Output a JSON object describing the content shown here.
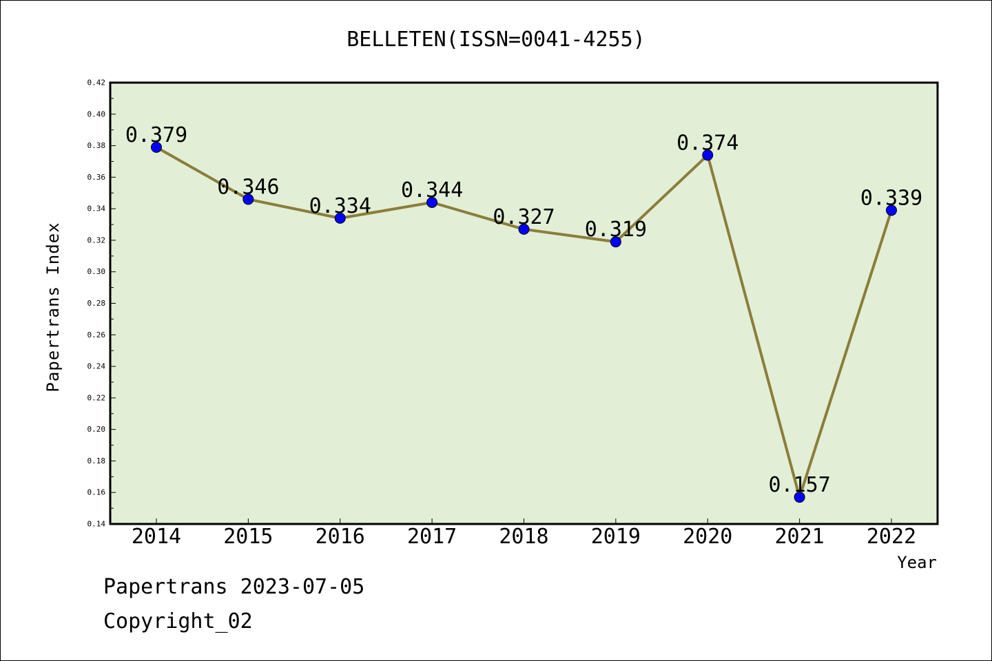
{
  "chart_data": {
    "type": "line",
    "title": "BELLETEN(ISSN=0041-4255)",
    "xlabel": "Year",
    "ylabel": "Papertrans Index",
    "categories": [
      "2014",
      "2015",
      "2016",
      "2017",
      "2018",
      "2019",
      "2020",
      "2021",
      "2022"
    ],
    "series": [
      {
        "values": [
          0.379,
          0.346,
          0.334,
          0.344,
          0.327,
          0.319,
          0.374,
          0.157,
          0.339
        ],
        "data_labels": [
          "0.379",
          "0.346",
          "0.334",
          "0.344",
          "0.327",
          "0.319",
          "0.374",
          "0.157",
          "0.339"
        ],
        "line_color": "#8b7d3a",
        "marker_color": "#0000ff"
      }
    ],
    "ylim": [
      0.14,
      0.42
    ],
    "yticks": [
      "0.14",
      "0.16",
      "0.18",
      "0.20",
      "0.22",
      "0.24",
      "0.26",
      "0.28",
      "0.30",
      "0.32",
      "0.34",
      "0.36",
      "0.38",
      "0.40",
      "0.42"
    ],
    "plot_background": "#e2efd6",
    "grid": false,
    "legend": "none"
  },
  "footer": {
    "line1": "Papertrans 2023-07-05",
    "line2": "Copyright_02"
  }
}
